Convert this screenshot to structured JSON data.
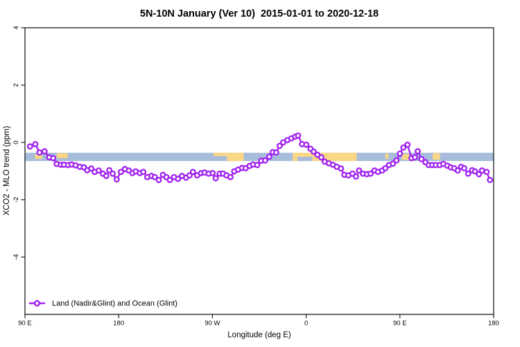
{
  "title": "5N-10N January (Ver 10)  2015-01-01 to 2020-12-18",
  "chart_data": {
    "type": "line",
    "title": "5N-10N January (Ver 10)  2015-01-01 to 2020-12-18",
    "xlabel": "Longitude (deg E)",
    "ylabel": "XCO2 - MLO trend (ppm)",
    "xlim": [
      90,
      540
    ],
    "ylim": [
      -6,
      4
    ],
    "grid": false,
    "x_ticks": [
      {
        "value": 90,
        "label": "90 E"
      },
      {
        "value": 180,
        "label": "180"
      },
      {
        "value": 270,
        "label": "90 W"
      },
      {
        "value": 360,
        "label": "0"
      },
      {
        "value": 450,
        "label": "90 E"
      },
      {
        "value": 540,
        "label": "180"
      }
    ],
    "y_ticks": [
      {
        "value": 4,
        "label": "4"
      },
      {
        "value": 2,
        "label": "2"
      },
      {
        "value": 0,
        "label": "0"
      },
      {
        "value": -2,
        "label": "-2"
      },
      {
        "value": -4,
        "label": "-4"
      }
    ],
    "legend": {
      "position": "bottom-left",
      "entries": [
        {
          "label": "Land (Nadir&Glint) and Ocean (Glint)",
          "color": "#A020F0",
          "marker": "open-circle"
        }
      ]
    },
    "colors": {
      "series": "#A020F0",
      "marker_fill": "#FFFFFF",
      "ocean": "#A8BDDC",
      "land": "#FAD687",
      "axis": "#1A1A1A"
    },
    "map_strip": {
      "y_top": -0.36,
      "y_bottom": -0.65,
      "land_segments": [
        {
          "from": 99.5,
          "to": 106.5,
          "top": 0.2,
          "height": 0.55
        },
        {
          "from": 120.5,
          "to": 131.0,
          "top": 0.05,
          "height": 0.6
        },
        {
          "from": 271.0,
          "to": 284.0,
          "top": 0.0,
          "height": 0.4
        },
        {
          "from": 284.0,
          "to": 300.0,
          "top": 0.0,
          "height": 1.0
        },
        {
          "from": 347.0,
          "to": 408.5,
          "top": 0.0,
          "height": 1.0
        },
        {
          "from": 436.0,
          "to": 439.0,
          "top": 0.1,
          "height": 0.65
        },
        {
          "from": 452.0,
          "to": 459.0,
          "top": 0.15,
          "height": 0.7
        },
        {
          "from": 481.5,
          "to": 488.5,
          "top": 0.05,
          "height": 0.8
        }
      ],
      "ocean_notches": [
        {
          "from": 351.5,
          "to": 366.0,
          "top": 0.5,
          "height": 0.5
        }
      ]
    },
    "series": [
      {
        "name": "Land (Nadir&Glint) and Ocean (Glint)",
        "color": "#A020F0",
        "marker": "open-circle",
        "points": [
          [
            94.9,
            -0.14
          ],
          [
            100.0,
            -0.06
          ],
          [
            104.0,
            -0.35
          ],
          [
            108.8,
            -0.31
          ],
          [
            113.3,
            -0.52
          ],
          [
            117.1,
            -0.55
          ],
          [
            120.4,
            -0.75
          ],
          [
            124.4,
            -0.78
          ],
          [
            127.5,
            -0.78
          ],
          [
            131.5,
            -0.79
          ],
          [
            134.8,
            -0.77
          ],
          [
            138.6,
            -0.8
          ],
          [
            142.6,
            -0.85
          ],
          [
            146.6,
            -0.87
          ],
          [
            149.7,
            -0.97
          ],
          [
            153.7,
            -0.91
          ],
          [
            157.0,
            -1.03
          ],
          [
            160.8,
            -0.98
          ],
          [
            164.8,
            -1.09
          ],
          [
            168.1,
            -1.17
          ],
          [
            171.0,
            -0.97
          ],
          [
            174.3,
            -1.09
          ],
          [
            178.1,
            -1.29
          ],
          [
            182.1,
            -1.03
          ],
          [
            185.9,
            -0.93
          ],
          [
            189.7,
            -0.98
          ],
          [
            193.2,
            -1.07
          ],
          [
            196.3,
            -1.01
          ],
          [
            200.3,
            -1.07
          ],
          [
            203.6,
            -1.03
          ],
          [
            207.4,
            -1.21
          ],
          [
            211.4,
            -1.17
          ],
          [
            214.7,
            -1.21
          ],
          [
            218.5,
            -1.31
          ],
          [
            222.5,
            -1.13
          ],
          [
            225.8,
            -1.21
          ],
          [
            229.1,
            -1.31
          ],
          [
            233.1,
            -1.21
          ],
          [
            236.9,
            -1.27
          ],
          [
            240.7,
            -1.17
          ],
          [
            244.7,
            -1.23
          ],
          [
            248.0,
            -1.15
          ],
          [
            251.3,
            -1.03
          ],
          [
            255.3,
            -1.15
          ],
          [
            259.1,
            -1.07
          ],
          [
            262.4,
            -1.05
          ],
          [
            266.4,
            -1.09
          ],
          [
            270.2,
            -1.07
          ],
          [
            273.1,
            -1.25
          ],
          [
            276.9,
            -1.09
          ],
          [
            280.2,
            -1.09
          ],
          [
            283.5,
            -1.15
          ],
          [
            287.3,
            -1.21
          ],
          [
            290.9,
            -1.01
          ],
          [
            294.6,
            -0.95
          ],
          [
            298.4,
            -0.89
          ],
          [
            301.9,
            -0.9
          ],
          [
            305.7,
            -0.82
          ],
          [
            309.0,
            -0.77
          ],
          [
            313.0,
            -0.79
          ],
          [
            316.8,
            -0.64
          ],
          [
            320.6,
            -0.63
          ],
          [
            324.6,
            -0.5
          ],
          [
            327.9,
            -0.34
          ],
          [
            331.2,
            -0.35
          ],
          [
            334.6,
            -0.12
          ],
          [
            337.9,
            0.0
          ],
          [
            341.9,
            0.08
          ],
          [
            345.7,
            0.14
          ],
          [
            349.5,
            0.2
          ],
          [
            352.3,
            0.24
          ],
          [
            356.1,
            -0.06
          ],
          [
            360.1,
            -0.08
          ],
          [
            364.1,
            -0.22
          ],
          [
            367.2,
            -0.32
          ],
          [
            370.8,
            -0.43
          ],
          [
            374.5,
            -0.52
          ],
          [
            377.8,
            -0.67
          ],
          [
            381.8,
            -0.73
          ],
          [
            385.6,
            -0.78
          ],
          [
            389.4,
            -0.85
          ],
          [
            393.4,
            -0.91
          ],
          [
            396.7,
            -1.13
          ],
          [
            400.5,
            -1.15
          ],
          [
            404.5,
            -1.09
          ],
          [
            407.8,
            -1.19
          ],
          [
            410.7,
            -0.98
          ],
          [
            414.5,
            -1.09
          ],
          [
            418.3,
            -1.11
          ],
          [
            421.8,
            -1.09
          ],
          [
            425.6,
            -0.98
          ],
          [
            428.9,
            -1.03
          ],
          [
            432.9,
            -0.98
          ],
          [
            436.0,
            -0.9
          ],
          [
            439.5,
            -0.79
          ],
          [
            443.3,
            -0.74
          ],
          [
            446.7,
            -0.63
          ],
          [
            450.0,
            -0.39
          ],
          [
            453.3,
            -0.18
          ],
          [
            457.3,
            -0.08
          ],
          [
            461.1,
            -0.55
          ],
          [
            464.4,
            -0.52
          ],
          [
            467.1,
            -0.31
          ],
          [
            470.7,
            -0.58
          ],
          [
            474.4,
            -0.69
          ],
          [
            477.7,
            -0.79
          ],
          [
            481.1,
            -0.79
          ],
          [
            484.4,
            -0.79
          ],
          [
            488.2,
            -0.79
          ],
          [
            491.7,
            -0.75
          ],
          [
            495.5,
            -0.81
          ],
          [
            498.8,
            -0.87
          ],
          [
            502.2,
            -0.9
          ],
          [
            505.5,
            -0.98
          ],
          [
            508.8,
            -0.85
          ],
          [
            511.7,
            -0.9
          ],
          [
            515.5,
            -1.09
          ],
          [
            519.3,
            -0.97
          ],
          [
            522.1,
            -1.01
          ],
          [
            525.9,
            -1.11
          ],
          [
            528.8,
            -0.98
          ],
          [
            533.2,
            -1.03
          ],
          [
            536.5,
            -1.31
          ]
        ]
      }
    ]
  }
}
